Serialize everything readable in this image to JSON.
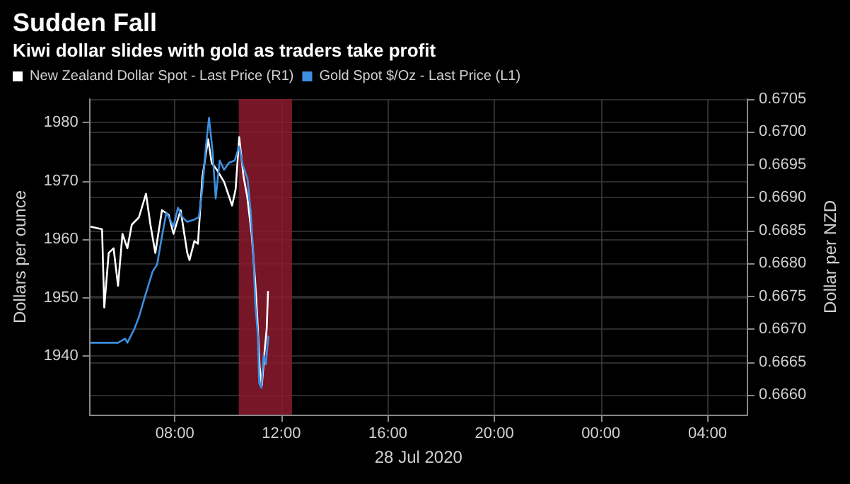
{
  "chart_data": {
    "type": "line",
    "title": "Sudden Fall",
    "subtitle": "Kiwi dollar slides with gold as traders take profit",
    "xlabel": "28 Jul 2020",
    "ylabel": "Dollars per ounce",
    "y2label": "Dollar per NZD",
    "xlim": [
      "2020-07-28T04:48",
      "2020-07-29T05:30"
    ],
    "xticks": [
      {
        "value": "2020-07-28T08:00",
        "label": "08:00"
      },
      {
        "value": "2020-07-28T12:00",
        "label": "12:00"
      },
      {
        "value": "2020-07-28T16:00",
        "label": "16:00"
      },
      {
        "value": "2020-07-28T20:00",
        "label": "20:00"
      },
      {
        "value": "2020-07-29T00:00",
        "label": "00:00"
      },
      {
        "value": "2020-07-29T04:00",
        "label": "04:00"
      }
    ],
    "ylim": [
      1930,
      1984
    ],
    "yticks": [
      1940,
      1950,
      1960,
      1970,
      1980
    ],
    "y2lim": [
      0.6657,
      0.6705
    ],
    "y2ticks": [
      {
        "value": 0.666,
        "label": "0.6660"
      },
      {
        "value": 0.6665,
        "label": "0.6665"
      },
      {
        "value": 0.667,
        "label": "0.6670"
      },
      {
        "value": 0.6675,
        "label": "0.6675"
      },
      {
        "value": 0.668,
        "label": "0.6680"
      },
      {
        "value": 0.6685,
        "label": "0.6685"
      },
      {
        "value": 0.669,
        "label": "0.6690"
      },
      {
        "value": 0.6695,
        "label": "0.6695"
      },
      {
        "value": 0.67,
        "label": "0.6700"
      },
      {
        "value": 0.6705,
        "label": "0.6705"
      }
    ],
    "grid": true,
    "legend": "top left",
    "marker": "none",
    "line_style": "solid",
    "bands": [
      {
        "axis": "x",
        "from": "2020-07-28T10:24",
        "to": "2020-07-28T12:24",
        "color": "#8b1a2e"
      }
    ],
    "series": [
      {
        "name": "New Zealand Dollar Spot - Last Price (R1)",
        "color": "#ffffff",
        "axis": "y2",
        "x": [
          "2020-07-28T04:50",
          "2020-07-28T05:16",
          "2020-07-28T05:21",
          "2020-07-28T05:31",
          "2020-07-28T05:42",
          "2020-07-28T05:52",
          "2020-07-28T06:02",
          "2020-07-28T06:13",
          "2020-07-28T06:23",
          "2020-07-28T06:39",
          "2020-07-28T06:55",
          "2020-07-28T07:05",
          "2020-07-28T07:16",
          "2020-07-28T07:31",
          "2020-07-28T07:46",
          "2020-07-28T07:57",
          "2020-07-28T08:13",
          "2020-07-28T08:28",
          "2020-07-28T08:33",
          "2020-07-28T08:44",
          "2020-07-28T08:52",
          "2020-07-28T09:02",
          "2020-07-28T09:15",
          "2020-07-28T09:23",
          "2020-07-28T09:35",
          "2020-07-28T09:51",
          "2020-07-28T10:02",
          "2020-07-28T10:09",
          "2020-07-28T10:17",
          "2020-07-28T10:25",
          "2020-07-28T10:35",
          "2020-07-28T10:43",
          "2020-07-28T10:53",
          "2020-07-28T11:01",
          "2020-07-28T11:06",
          "2020-07-28T11:11",
          "2020-07-28T11:16",
          "2020-07-28T11:22",
          "2020-07-28T11:27",
          "2020-07-28T11:30"
        ],
        "values": [
          0.66856,
          0.66852,
          0.66733,
          0.66816,
          0.66823,
          0.66766,
          0.66845,
          0.66823,
          0.66859,
          0.6687,
          0.66906,
          0.66859,
          0.66816,
          0.66881,
          0.66874,
          0.66845,
          0.66881,
          0.66816,
          0.66805,
          0.66834,
          0.6683,
          0.66931,
          0.66989,
          0.66953,
          0.66942,
          0.66924,
          0.66902,
          0.66888,
          0.66913,
          0.66992,
          0.66931,
          0.66902,
          0.66845,
          0.66773,
          0.66715,
          0.66643,
          0.66614,
          0.66665,
          0.66701,
          0.66758
        ]
      },
      {
        "name": "Gold Spot $/Oz - Last Price (L1)",
        "color": "#3d8fe0",
        "axis": "y",
        "x": [
          "2020-07-28T04:50",
          "2020-07-28T05:52",
          "2020-07-28T06:08",
          "2020-07-28T06:13",
          "2020-07-28T06:29",
          "2020-07-28T06:39",
          "2020-07-28T06:55",
          "2020-07-28T07:10",
          "2020-07-28T07:20",
          "2020-07-28T07:31",
          "2020-07-28T07:41",
          "2020-07-28T07:57",
          "2020-07-28T08:07",
          "2020-07-28T08:17",
          "2020-07-28T08:28",
          "2020-07-28T08:44",
          "2020-07-28T08:54",
          "2020-07-28T09:02",
          "2020-07-28T09:10",
          "2020-07-28T09:17",
          "2020-07-28T09:25",
          "2020-07-28T09:32",
          "2020-07-28T09:41",
          "2020-07-28T09:51",
          "2020-07-28T10:02",
          "2020-07-28T10:15",
          "2020-07-28T10:25",
          "2020-07-28T10:33",
          "2020-07-28T10:44",
          "2020-07-28T10:51",
          "2020-07-28T10:57",
          "2020-07-28T11:01",
          "2020-07-28T11:07",
          "2020-07-28T11:10",
          "2020-07-28T11:15",
          "2020-07-28T11:20",
          "2020-07-28T11:25",
          "2020-07-28T11:31"
        ],
        "values": [
          1942.3,
          1942.3,
          1943,
          1942.3,
          1944.7,
          1946.7,
          1950.8,
          1954.5,
          1955.7,
          1960.5,
          1964.6,
          1962.2,
          1965.4,
          1963.8,
          1963,
          1963.4,
          1963.8,
          1968.6,
          1975.9,
          1980.8,
          1975.1,
          1967,
          1973.5,
          1971.9,
          1973.1,
          1973.5,
          1975.9,
          1972.7,
          1970.3,
          1964.6,
          1957.3,
          1949.2,
          1943.5,
          1935.4,
          1934.6,
          1940.2,
          1938.6,
          1943.5
        ]
      }
    ]
  }
}
